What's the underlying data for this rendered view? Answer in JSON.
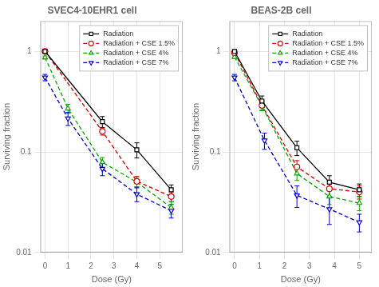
{
  "chart_data": [
    {
      "type": "line",
      "title": "SVEC4-10EHR1 cell",
      "xlabel": "Dose (Gy)",
      "ylabel": "Surviving fraction",
      "xlim": [
        -0.2,
        6.0
      ],
      "xticks": [
        0,
        1,
        2,
        3,
        4,
        5
      ],
      "ylim": [
        0.01,
        2.0
      ],
      "yticks": [
        0.01,
        0.1,
        1
      ],
      "log": "y",
      "grid": true,
      "legend": "upper right",
      "series": [
        {
          "name": "Radiation",
          "color": "#000000",
          "line_style": "solid",
          "marker": "square",
          "x": [
            0,
            2.5,
            4.0,
            5.5
          ],
          "values": [
            1.0,
            0.2,
            0.105,
            0.042
          ],
          "errors": [
            0.02,
            0.025,
            0.018,
            0.005
          ]
        },
        {
          "name": "Radiation + CSE 1.5%",
          "color": "#dd0000",
          "line_style": "dashed",
          "marker": "circle",
          "x": [
            0,
            2.5,
            4.0,
            5.5
          ],
          "values": [
            1.0,
            0.16,
            0.051,
            0.036
          ],
          "errors": [
            0.02,
            0.013,
            0.006,
            0.004
          ]
        },
        {
          "name": "Radiation + CSE 4%",
          "color": "#00aa00",
          "line_style": "dashed",
          "marker": "triangle_up",
          "x": [
            0,
            1.0,
            2.5,
            4.0,
            5.5
          ],
          "values": [
            0.87,
            0.27,
            0.079,
            0.05,
            0.028
          ],
          "errors": [
            0.03,
            0.028,
            0.009,
            0.006,
            0.004
          ]
        },
        {
          "name": "Radiation + CSE 7%",
          "color": "#0000cc",
          "line_style": "dashed",
          "marker": "triangle_down",
          "x": [
            0,
            1.0,
            2.5,
            4.0,
            5.5
          ],
          "values": [
            0.55,
            0.215,
            0.068,
            0.038,
            0.026
          ],
          "errors": [
            0.04,
            0.032,
            0.01,
            0.006,
            0.004
          ]
        }
      ]
    },
    {
      "type": "line",
      "title": "BEAS-2B cell",
      "xlabel": "Dose (Gy)",
      "ylabel": "Surviving fraction",
      "xlim": [
        -0.2,
        5.5
      ],
      "xticks": [
        0,
        1,
        2,
        3,
        4,
        5
      ],
      "ylim": [
        0.01,
        2.0
      ],
      "yticks": [
        0.01,
        0.1,
        1
      ],
      "log": "y",
      "grid": true,
      "legend": "upper right",
      "series": [
        {
          "name": "Radiation",
          "color": "#000000",
          "line_style": "solid",
          "marker": "square",
          "x": [
            0,
            1.1,
            2.5,
            3.8,
            5.0
          ],
          "values": [
            1.0,
            0.32,
            0.11,
            0.05,
            0.042
          ],
          "errors": [
            0.02,
            0.04,
            0.018,
            0.008,
            0.006
          ]
        },
        {
          "name": "Radiation + CSE 1.5%",
          "color": "#dd0000",
          "line_style": "dashed",
          "marker": "circle",
          "x": [
            0,
            1.1,
            2.5,
            3.8,
            5.0
          ],
          "values": [
            0.97,
            0.29,
            0.071,
            0.043,
            0.04
          ],
          "errors": [
            0.02,
            0.03,
            0.011,
            0.007,
            0.006
          ]
        },
        {
          "name": "Radiation + CSE 4%",
          "color": "#00aa00",
          "line_style": "dashed",
          "marker": "triangle_up",
          "x": [
            0,
            1.1,
            2.5,
            3.8,
            5.0
          ],
          "values": [
            0.88,
            0.285,
            0.061,
            0.036,
            0.031
          ],
          "errors": [
            0.03,
            0.028,
            0.009,
            0.006,
            0.005
          ]
        },
        {
          "name": "Radiation + CSE 7%",
          "color": "#0000cc",
          "line_style": "dashed",
          "marker": "triangle_down",
          "x": [
            0,
            1.2,
            2.5,
            3.8,
            5.0
          ],
          "values": [
            0.55,
            0.13,
            0.037,
            0.027,
            0.02
          ],
          "errors": [
            0.04,
            0.024,
            0.009,
            0.008,
            0.004
          ]
        }
      ]
    }
  ]
}
